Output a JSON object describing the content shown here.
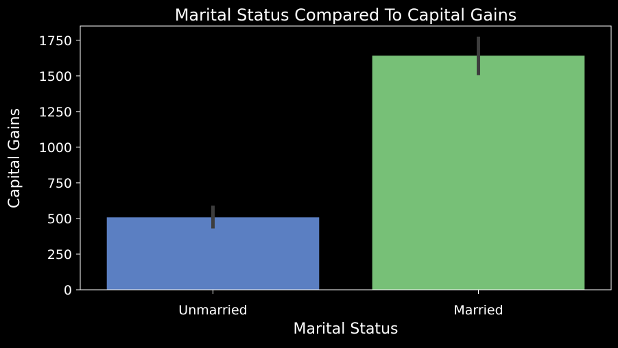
{
  "chart_data": {
    "type": "bar",
    "title": "Marital Status Compared To Capital Gains",
    "xlabel": "Marital Status",
    "ylabel": "Capital Gains",
    "categories": [
      "Unmarried",
      "Married"
    ],
    "values": [
      508,
      1642
    ],
    "error_bars": [
      {
        "low": 430,
        "high": 590
      },
      {
        "low": 1505,
        "high": 1775
      }
    ],
    "bar_colors": [
      "#5b7fc2",
      "#77c077"
    ],
    "error_color": "#3d3d3d",
    "ylim": [
      0,
      1850
    ],
    "yticks": [
      0,
      250,
      500,
      750,
      1000,
      1250,
      1500,
      1750
    ],
    "grid": false,
    "legend": "none"
  },
  "style": {
    "background": "#000000",
    "text_color": "#ffffff",
    "axis_color": "#ffffff"
  }
}
